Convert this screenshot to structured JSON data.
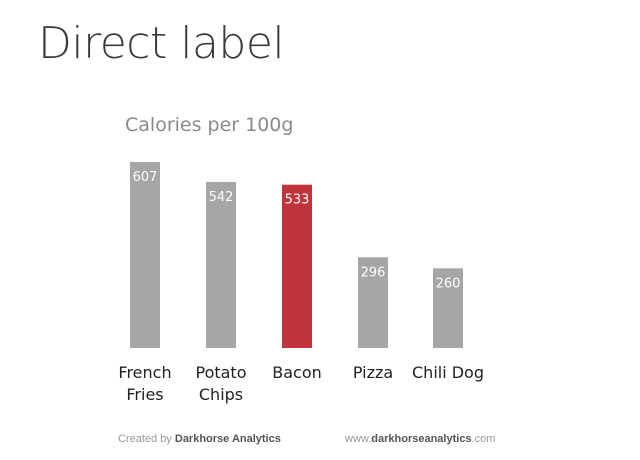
{
  "page": {
    "title": "Direct label"
  },
  "chart_data": {
    "type": "bar",
    "title": "Calories per 100g",
    "xlabel": "",
    "ylabel": "",
    "categories": [
      [
        "French",
        "Fries"
      ],
      [
        "Potato",
        "Chips"
      ],
      [
        "Bacon"
      ],
      [
        "Pizza"
      ],
      [
        "Chili Dog"
      ]
    ],
    "values": [
      607,
      542,
      533,
      296,
      260
    ],
    "highlight_index": 2,
    "ylim": [
      0,
      607
    ],
    "grid": false,
    "legend": "none",
    "bar_color": "#a6a6a6",
    "highlight_color": "#c0353b",
    "value_label_color": "#ffffff"
  },
  "footer": {
    "credit_prefix": "Created by",
    "credit_name": "Darkhorse Analytics",
    "url_prefix": "www.",
    "url_name": "darkhorseanalytics",
    "url_suffix": ".com"
  }
}
